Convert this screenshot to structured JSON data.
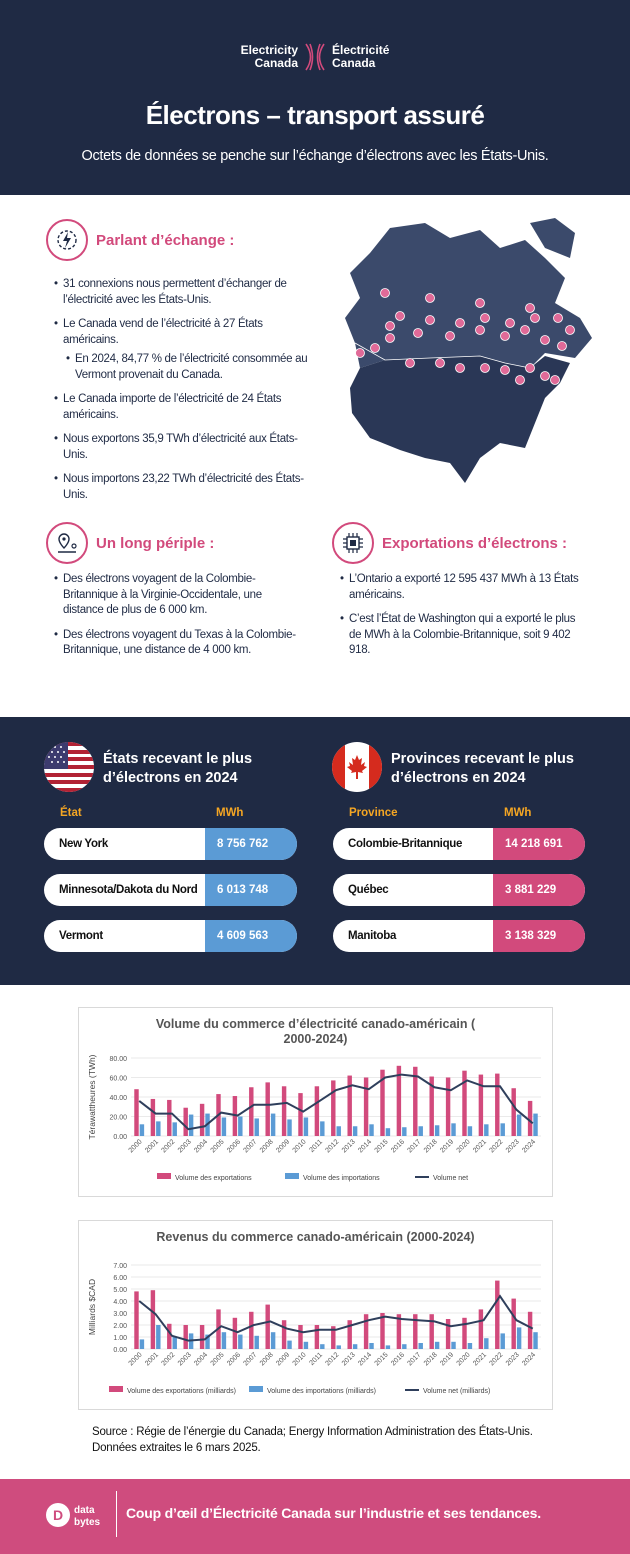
{
  "header": {
    "logo_en": [
      "Electricity",
      "Canada"
    ],
    "logo_fr": [
      "Électricité",
      "Canada"
    ],
    "title": "Électrons – transport assuré",
    "subtitle": "Octets de données se penche sur l’échange d’électrons avec les États-Unis."
  },
  "trade": {
    "title": "Parlant d’échange :",
    "bullets": [
      "31 connexions nous permettent d’échanger de l’électricité avec les États-Unis.",
      "Le Canada vend de l’électricité à 27 États américains.",
      "En 2024, 84,77 % de l’électricité consommée au Vermont provenait du Canada.",
      "Le Canada importe de l’électricité de 24 États américains.",
      "Nous exportons 35,9 TWh d’électricité aux États-Unis.",
      "Nous importons 23,22 TWh d’électricité des États-Unis."
    ]
  },
  "journey": {
    "title": "Un long périple :",
    "bullets": [
      "Des électrons voyagent de la Colombie-Britannique à la Virginie-Occidentale, une distance de plus de 6 000 km.",
      "Des électrons voyagent du Texas à la Colombie-Britannique, une distance de 4 000 km."
    ]
  },
  "exports": {
    "title": "Exportations d’électrons :",
    "bullets": [
      "L’Ontario a exporté 12 595 437 MWh à 13 États américains.",
      "C’est l’État de Washington qui a exporté le plus de MWh à la Colombie-Britannique, soit 9 402 918."
    ]
  },
  "states": {
    "title": "États recevant le plus d’électrons en 2024",
    "col_name": "État",
    "col_value": "MWh",
    "rows": [
      {
        "name": "New York",
        "value": "8 756 762"
      },
      {
        "name": "Minnesota/Dakota du Nord",
        "value": "6 013 748"
      },
      {
        "name": "Vermont",
        "value": "4 609 563"
      }
    ]
  },
  "provinces": {
    "title": "Provinces recevant le plus d’électrons en 2024",
    "col_name": "Province",
    "col_value": "MWh",
    "rows": [
      {
        "name": "Colombie-Britannique",
        "value": "14 218 691"
      },
      {
        "name": "Québec",
        "value": "3 881 229"
      },
      {
        "name": "Manitoba",
        "value": "3 138 329"
      }
    ]
  },
  "colors": {
    "navy": "#1f2a44",
    "pink": "#d24a7c",
    "blue": "#5b9bd5",
    "orange": "#f5a623"
  },
  "chart_data": [
    {
      "type": "bar",
      "title": "Volume du commerce d’électricité canado-américain (2000-2024)",
      "ylabel": "Térawattheures (TWh)",
      "ylim": [
        0,
        80
      ],
      "yticks": [
        "0.00",
        "20.00",
        "40.00",
        "60.00",
        "80.00"
      ],
      "categories": [
        "2000",
        "2001",
        "2002",
        "2003",
        "2004",
        "2005",
        "2006",
        "2007",
        "2008",
        "2009",
        "2010",
        "2011",
        "2012",
        "2013",
        "2014",
        "2015",
        "2016",
        "2017",
        "2018",
        "2019",
        "2020",
        "2021",
        "2022",
        "2023",
        "2024"
      ],
      "series": [
        {
          "name": "Volume des exportations",
          "kind": "bar",
          "color": "#d24a7c",
          "values": [
            48,
            38,
            37,
            29,
            33,
            43,
            41,
            50,
            55,
            51,
            44,
            51,
            57,
            62,
            60,
            68,
            72,
            71,
            61,
            60,
            67,
            63,
            64,
            49,
            36
          ]
        },
        {
          "name": "Volume des importations",
          "kind": "bar",
          "color": "#5b9bd5",
          "values": [
            12,
            15,
            14,
            22,
            23,
            19,
            20,
            18,
            23,
            17,
            19,
            15,
            10,
            10,
            12,
            8,
            9,
            10,
            11,
            13,
            10,
            12,
            13,
            22,
            23
          ]
        },
        {
          "name": "Volume net",
          "kind": "line",
          "color": "#2f3f5c",
          "values": [
            36,
            23,
            23,
            7,
            10,
            24,
            21,
            32,
            32,
            34,
            25,
            36,
            47,
            52,
            48,
            60,
            63,
            61,
            50,
            47,
            57,
            51,
            51,
            27,
            13
          ]
        }
      ],
      "legend": "bottom"
    },
    {
      "type": "bar",
      "title": "Revenus du commerce canado-américain (2000-2024)",
      "ylabel": "Milliards $CAD",
      "ylim": [
        0,
        7
      ],
      "yticks": [
        "0.00",
        "1.00",
        "2.00",
        "3.00",
        "4.00",
        "5.00",
        "6.00",
        "7.00"
      ],
      "categories": [
        "2000",
        "2001",
        "2002",
        "2003",
        "2004",
        "2005",
        "2006",
        "2007",
        "2008",
        "2009",
        "2010",
        "2011",
        "2012",
        "2013",
        "2014",
        "2015",
        "2016",
        "2017",
        "2018",
        "2019",
        "2020",
        "2021",
        "2022",
        "2023",
        "2024"
      ],
      "series": [
        {
          "name": "Volume des exportations (milliards)",
          "kind": "bar",
          "color": "#d24a7c",
          "values": [
            4.8,
            4.9,
            2.1,
            2.0,
            2.0,
            3.3,
            2.6,
            3.1,
            3.7,
            2.4,
            2.0,
            2.0,
            1.9,
            2.4,
            2.9,
            3.0,
            2.9,
            2.9,
            2.9,
            2.5,
            2.6,
            3.3,
            5.7,
            4.2,
            3.1
          ]
        },
        {
          "name": "Volume des importations (milliards)",
          "kind": "bar",
          "color": "#5b9bd5",
          "values": [
            0.8,
            2.0,
            1.0,
            1.3,
            1.2,
            1.4,
            1.2,
            1.1,
            1.4,
            0.7,
            0.6,
            0.4,
            0.3,
            0.4,
            0.5,
            0.3,
            0.4,
            0.5,
            0.6,
            0.6,
            0.5,
            0.9,
            1.3,
            1.8,
            1.4
          ]
        },
        {
          "name": "Volume net (milliards)",
          "kind": "line",
          "color": "#2f3f5c",
          "values": [
            4.0,
            2.9,
            1.1,
            0.7,
            0.8,
            1.9,
            1.4,
            2.0,
            2.3,
            1.7,
            1.4,
            1.6,
            1.6,
            2.0,
            2.4,
            2.7,
            2.5,
            2.4,
            2.3,
            1.9,
            2.1,
            2.4,
            4.4,
            2.4,
            1.7
          ]
        }
      ],
      "legend": "bottom"
    }
  ],
  "source": "Source : Régie de l’énergie du Canada; Energy Information Administration des États-Unis. Données extraites le 6 mars 2025.",
  "footer": {
    "logo": [
      "data",
      "bytes"
    ],
    "text": "Coup d’œil d’Électricité Canada sur l’industrie et ses tendances."
  }
}
